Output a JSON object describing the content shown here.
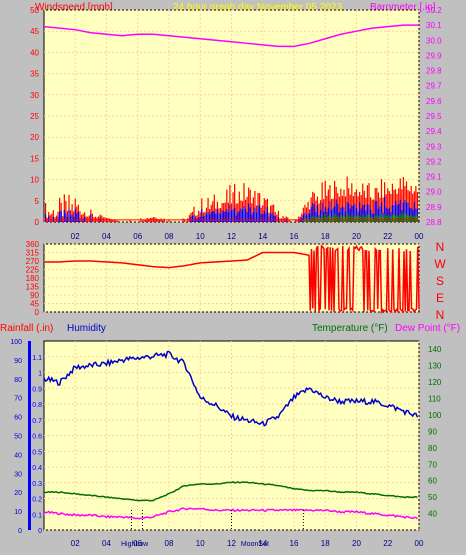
{
  "header": {
    "wind_label": "Windspeed [mph]",
    "title": "24 hour graph day   November 05 2023",
    "baro_label": "Barometer [.in]"
  },
  "colors": {
    "bg": "#c0c0c0",
    "plot": "#ffffc0",
    "grid": "#ffd0a0",
    "wind": "#ff0000",
    "gust": "#0000ff",
    "avg": "#008000",
    "baro": "#ff00ff",
    "humidity": "#0000cc",
    "temperature": "#007000",
    "dewpoint": "#ff00ff",
    "rain": "#0000ff",
    "title": "#ffff00"
  },
  "x_tick_labels": [
    "02",
    "04",
    "06",
    "08",
    "10",
    "12",
    "14",
    "16",
    "18",
    "20",
    "22",
    "00"
  ],
  "bottom_labels": {
    "high": "HighLow",
    "moon": "MoonSet"
  },
  "chart_data": [
    {
      "type": "line",
      "title": "24 hour graph day   November 05 2023",
      "ylabel": "Windspeed [mph]",
      "y2label": "Barometer [.in]",
      "ylim": [
        0,
        50
      ],
      "y_ticks": [
        0,
        5,
        10,
        15,
        20,
        25,
        30,
        35,
        40,
        45,
        50
      ],
      "y2lim": [
        28.8,
        30.2
      ],
      "y2_ticks": [
        28.8,
        28.9,
        29.0,
        29.1,
        29.2,
        29.3,
        29.4,
        29.5,
        29.6,
        29.7,
        29.8,
        29.9,
        30.0,
        30.1,
        30.2
      ],
      "x": [
        0,
        1,
        2,
        3,
        4,
        5,
        6,
        7,
        8,
        9,
        10,
        11,
        12,
        13,
        14,
        15,
        16,
        17,
        18,
        19,
        20,
        21,
        22,
        23,
        24
      ],
      "series": [
        {
          "name": "Windspeed [mph]",
          "values": [
            1,
            1,
            2,
            1,
            1,
            0,
            0,
            1,
            0,
            0,
            2,
            3,
            4,
            5,
            3,
            1,
            0,
            3,
            5,
            6,
            6,
            5,
            6,
            7,
            6
          ],
          "peaks": [
            5,
            6,
            8,
            3,
            1,
            0,
            1,
            2,
            1,
            1,
            6,
            7,
            9,
            10,
            8,
            3,
            0,
            8,
            10,
            11,
            11,
            9,
            11,
            12,
            12
          ]
        },
        {
          "name": "Barometer [.in]",
          "values": [
            30.09,
            30.08,
            30.07,
            30.05,
            30.04,
            30.03,
            30.04,
            30.04,
            30.03,
            30.02,
            30.01,
            30.0,
            29.99,
            29.98,
            29.97,
            29.96,
            29.96,
            29.98,
            30.01,
            30.04,
            30.06,
            30.08,
            30.09,
            30.1,
            30.1
          ]
        }
      ],
      "grid": true
    },
    {
      "type": "scatter",
      "ylabel": "direction",
      "ylim": [
        0,
        360
      ],
      "y_ticks": [
        0,
        45,
        90,
        135,
        180,
        225,
        270,
        315,
        360
      ],
      "right_labels": [
        "N",
        "W",
        "S",
        "E",
        "N"
      ],
      "x": [
        0,
        1,
        2,
        3,
        4,
        5,
        6,
        7,
        8,
        9,
        10,
        11,
        12,
        13,
        14,
        15,
        16,
        17,
        18,
        19,
        20,
        21,
        22,
        23,
        24
      ],
      "values": [
        265,
        265,
        270,
        270,
        265,
        260,
        250,
        240,
        235,
        245,
        260,
        265,
        270,
        275,
        315,
        315,
        315,
        300,
        180,
        90,
        200,
        150,
        60,
        300,
        300
      ],
      "grid": true
    },
    {
      "type": "line",
      "ylabel": "Rainfall (.in)",
      "y2label": "Humidity",
      "y3label": "Temperature (°F)",
      "y4label": "Dew Point (°F)",
      "rain_lim": [
        0,
        1.2
      ],
      "rain_ticks": [
        0,
        0.1,
        0.2,
        0.3,
        0.4,
        0.5,
        0.6,
        0.7,
        0.8,
        0.9,
        1.0,
        1.1
      ],
      "hum_lim": [
        0,
        100
      ],
      "hum_ticks": [
        0,
        10,
        20,
        30,
        40,
        50,
        60,
        70,
        80,
        90,
        100
      ],
      "temp_lim": [
        30,
        145
      ],
      "temp_ticks": [
        40,
        50,
        60,
        70,
        80,
        90,
        100,
        110,
        120,
        130,
        140
      ],
      "x": [
        0,
        1,
        2,
        3,
        4,
        5,
        6,
        7,
        8,
        9,
        10,
        11,
        12,
        13,
        14,
        15,
        16,
        17,
        18,
        19,
        20,
        21,
        22,
        23,
        24
      ],
      "series": [
        {
          "name": "Humidity",
          "values": [
            80,
            78,
            86,
            87,
            88,
            90,
            91,
            92,
            93,
            88,
            70,
            66,
            60,
            58,
            56,
            60,
            70,
            75,
            70,
            68,
            68,
            68,
            66,
            63,
            60
          ]
        },
        {
          "name": "Temperature (°F)",
          "values": [
            53,
            53,
            52,
            51,
            50,
            49,
            48,
            48,
            52,
            57,
            58,
            58,
            59,
            59,
            58,
            57,
            55,
            54,
            54,
            53,
            53,
            52,
            51,
            50,
            50
          ]
        },
        {
          "name": "Dew Point (°F)",
          "values": [
            41,
            40,
            39,
            39,
            38,
            38,
            37,
            38,
            41,
            43,
            43,
            42,
            42,
            42,
            42,
            42,
            42,
            42,
            42,
            41,
            41,
            40,
            39,
            38,
            37
          ]
        }
      ],
      "grid": true
    }
  ]
}
